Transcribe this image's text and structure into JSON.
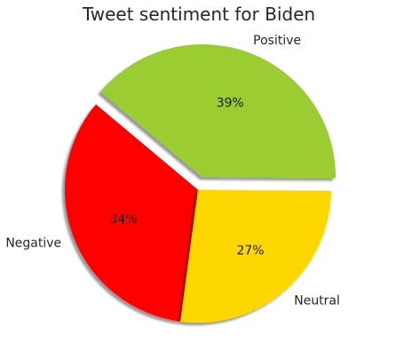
{
  "chart_data": {
    "type": "pie",
    "title": "Tweet sentiment for Biden",
    "slices": [
      {
        "label": "Negative",
        "value": 34,
        "pct_label": "34%",
        "color": "#ff0000",
        "explode": false
      },
      {
        "label": "Neutral",
        "value": 27,
        "pct_label": "27%",
        "color": "#ffd700",
        "explode": false
      },
      {
        "label": "Positive",
        "value": 39,
        "pct_label": "39%",
        "color": "#9acd32",
        "explode": true
      }
    ],
    "start_angle_deg": 140,
    "direction": "counterclockwise",
    "shadow": true
  }
}
